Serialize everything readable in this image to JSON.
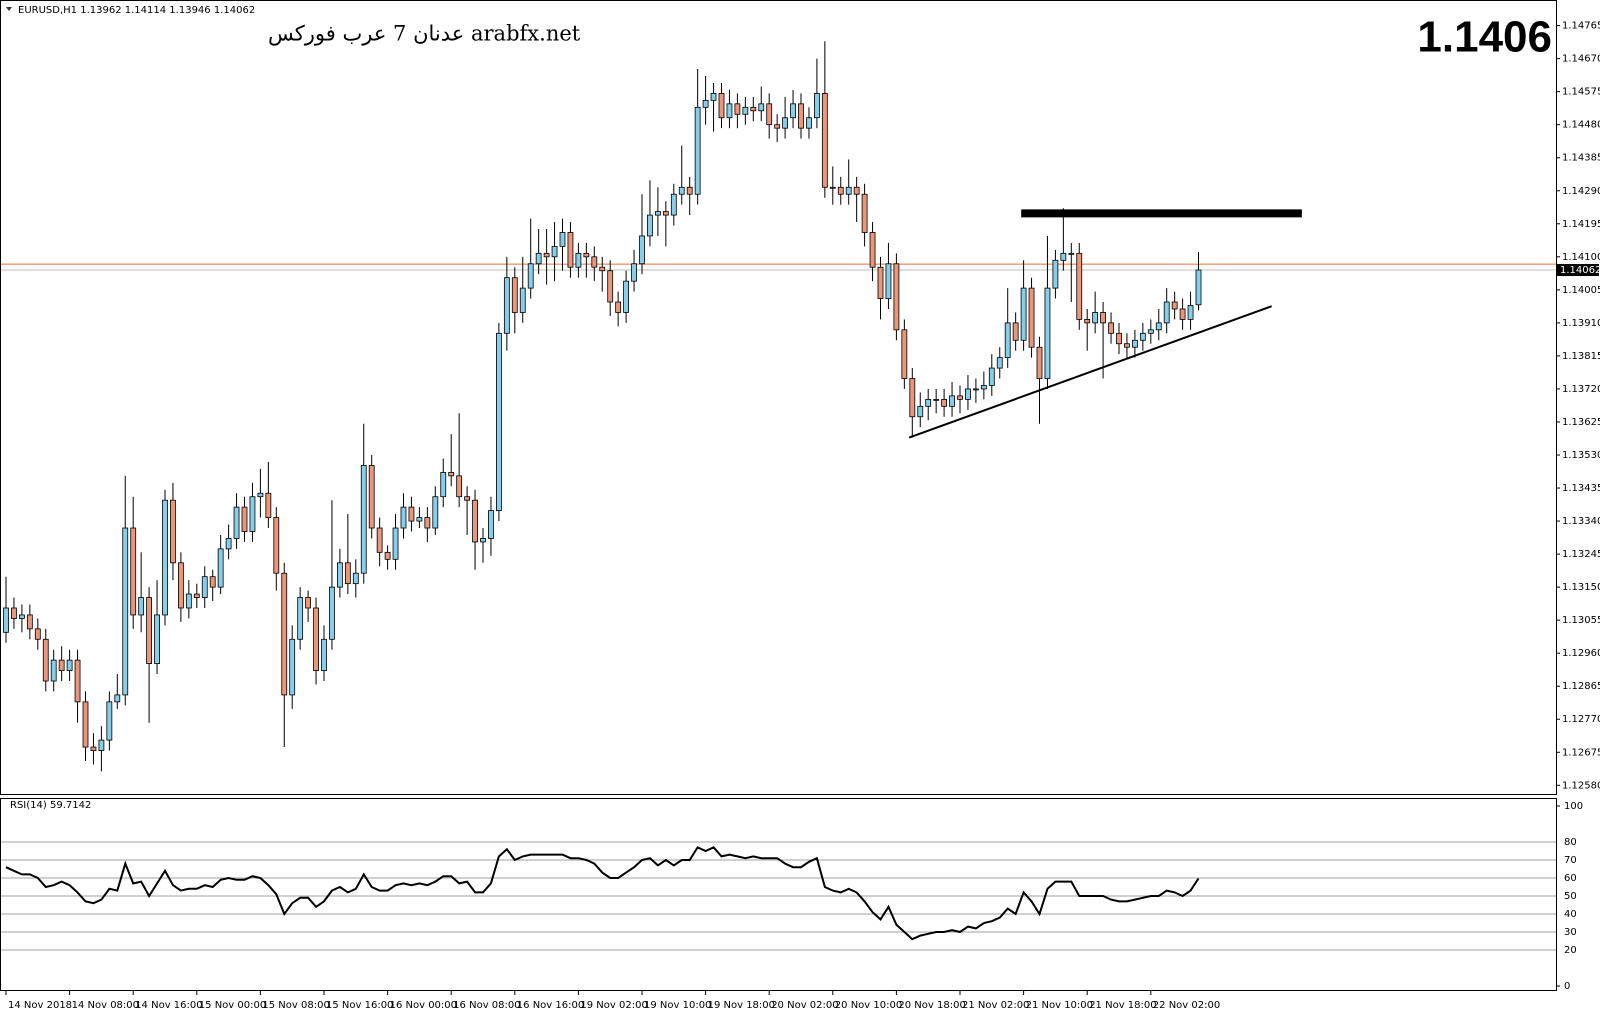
{
  "chart_data": [
    {
      "type": "candlestick",
      "symbol": "EURUSD,H1",
      "watermark": "عدنان 7 عرب فوركس arabfx.net",
      "price_display": 1.1406,
      "up_color": "#87ceeb",
      "down_color": "#e9967a",
      "ask_line": 1.14079,
      "ask_color": "#e8703a",
      "ylim": [
        1.12555,
        1.1483
      ],
      "yticks": [
        {
          "value": 1.1258,
          "label": "1.12580"
        },
        1.12675,
        {
          "value": 1.1277,
          "label": "1.12770"
        },
        1.12865,
        {
          "value": 1.1296,
          "label": "1.12960"
        },
        1.13055,
        {
          "value": 1.1315,
          "label": "1.13150"
        },
        1.13245,
        {
          "value": 1.1334,
          "label": "1.13340"
        },
        1.13435,
        {
          "value": 1.1353,
          "label": "1.13530"
        },
        1.13625,
        {
          "value": 1.1372,
          "label": "1.13720"
        },
        1.13815,
        {
          "value": 1.1391,
          "label": "1.13910"
        },
        1.14005,
        {
          "value": 1.141,
          "label": "1.14100"
        },
        1.14195,
        {
          "value": 1.1429,
          "label": "1.14290"
        },
        1.14385,
        {
          "value": 1.1448,
          "label": "1.14480"
        },
        1.14575,
        {
          "value": 1.1467,
          "label": "1.14670"
        },
        1.14765
      ],
      "x_labels": [
        {
          "value": 0,
          "label": "14 Nov 2018"
        },
        {
          "value": 8,
          "label": "14 Nov 08:00"
        },
        {
          "value": 16,
          "label": "14 Nov 16:00"
        },
        {
          "value": 24,
          "label": "15 Nov 00:00"
        },
        {
          "value": 32,
          "label": "15 Nov 08:00"
        },
        {
          "value": 40,
          "label": "15 Nov 16:00"
        },
        {
          "value": 48,
          "label": "16 Nov 00:00"
        },
        {
          "value": 56,
          "label": "16 Nov 08:00"
        },
        {
          "value": 64,
          "label": "16 Nov 16:00"
        },
        {
          "value": 72,
          "label": "19 Nov 02:00"
        },
        {
          "value": 80,
          "label": "19 Nov 10:00"
        },
        {
          "value": 88,
          "label": "19 Nov 18:00"
        },
        {
          "value": 96,
          "label": "20 Nov 02:00"
        },
        {
          "value": 104,
          "label": "20 Nov 10:00"
        },
        {
          "value": 112,
          "label": "20 Nov 18:00"
        },
        {
          "value": 120,
          "label": "21 Nov 02:00"
        },
        {
          "value": 128,
          "label": "21 Nov 10:00"
        },
        {
          "value": 136,
          "label": "21 Nov 18:00"
        },
        {
          "value": 144,
          "label": "22 Nov 02:00"
        }
      ],
      "resistance": {
        "price": 1.14225,
        "x": [
          127.7,
          163
        ]
      },
      "trendline": {
        "x": [
          113.6,
          159.2
        ],
        "price": [
          1.1358,
          1.13958
        ]
      },
      "ohlc": [
        [
          1.1302,
          1.1318,
          1.1299,
          1.1309
        ],
        [
          1.1309,
          1.1312,
          1.1303,
          1.1306
        ],
        [
          1.1306,
          1.131,
          1.1302,
          1.1307
        ],
        [
          1.1307,
          1.131,
          1.13,
          1.1303
        ],
        [
          1.1303,
          1.1306,
          1.1297,
          1.13
        ],
        [
          1.13,
          1.1303,
          1.1285,
          1.1288
        ],
        [
          1.1288,
          1.1297,
          1.1285,
          1.1294
        ],
        [
          1.1294,
          1.1298,
          1.1288,
          1.1291
        ],
        [
          1.1291,
          1.1297,
          1.1288,
          1.1294
        ],
        [
          1.1294,
          1.1297,
          1.1276,
          1.1282
        ],
        [
          1.1282,
          1.1285,
          1.1265,
          1.1269
        ],
        [
          1.1269,
          1.1273,
          1.1264,
          1.1268
        ],
        [
          1.1268,
          1.1275,
          1.1262,
          1.1271
        ],
        [
          1.1271,
          1.1285,
          1.1268,
          1.1282
        ],
        [
          1.1282,
          1.129,
          1.128,
          1.1284
        ],
        [
          1.1284,
          1.1347,
          1.1281,
          1.1332
        ],
        [
          1.1332,
          1.1341,
          1.1303,
          1.1307
        ],
        [
          1.1307,
          1.1325,
          1.1302,
          1.1312
        ],
        [
          1.1312,
          1.1315,
          1.1276,
          1.1293
        ],
        [
          1.1293,
          1.1317,
          1.129,
          1.1307
        ],
        [
          1.1307,
          1.1343,
          1.1304,
          1.134
        ],
        [
          1.134,
          1.1345,
          1.1317,
          1.1322
        ],
        [
          1.1322,
          1.1325,
          1.1305,
          1.1309
        ],
        [
          1.1309,
          1.1317,
          1.1306,
          1.1313
        ],
        [
          1.1313,
          1.1316,
          1.1309,
          1.1312
        ],
        [
          1.1312,
          1.1321,
          1.1309,
          1.1318
        ],
        [
          1.1318,
          1.132,
          1.1311,
          1.1315
        ],
        [
          1.1315,
          1.133,
          1.1313,
          1.1326
        ],
        [
          1.1326,
          1.1333,
          1.1323,
          1.1329
        ],
        [
          1.1329,
          1.1342,
          1.1326,
          1.1338
        ],
        [
          1.1338,
          1.1341,
          1.1328,
          1.1331
        ],
        [
          1.1331,
          1.1345,
          1.1328,
          1.1341
        ],
        [
          1.1341,
          1.1349,
          1.1335,
          1.1342
        ],
        [
          1.1342,
          1.1351,
          1.1332,
          1.1335
        ],
        [
          1.1335,
          1.1338,
          1.1314,
          1.1319
        ],
        [
          1.1319,
          1.1322,
          1.1269,
          1.1284
        ],
        [
          1.1284,
          1.1304,
          1.128,
          1.13
        ],
        [
          1.13,
          1.1315,
          1.1297,
          1.1312
        ],
        [
          1.1312,
          1.1314,
          1.1305,
          1.1309
        ],
        [
          1.1309,
          1.1312,
          1.1287,
          1.1291
        ],
        [
          1.1291,
          1.1304,
          1.1288,
          1.13
        ],
        [
          1.13,
          1.134,
          1.1297,
          1.1315
        ],
        [
          1.1315,
          1.1326,
          1.1312,
          1.1322
        ],
        [
          1.1322,
          1.1336,
          1.1313,
          1.1316
        ],
        [
          1.1316,
          1.1323,
          1.1312,
          1.1319
        ],
        [
          1.1319,
          1.1362,
          1.1316,
          1.135
        ],
        [
          1.135,
          1.1353,
          1.1329,
          1.1332
        ],
        [
          1.1332,
          1.1335,
          1.1321,
          1.1325
        ],
        [
          1.1325,
          1.1327,
          1.132,
          1.1323
        ],
        [
          1.1323,
          1.1336,
          1.132,
          1.1332
        ],
        [
          1.1332,
          1.1342,
          1.1329,
          1.1338
        ],
        [
          1.1338,
          1.1341,
          1.1331,
          1.1334
        ],
        [
          1.1334,
          1.1338,
          1.1332,
          1.1335
        ],
        [
          1.1335,
          1.1338,
          1.1328,
          1.1332
        ],
        [
          1.1332,
          1.1344,
          1.133,
          1.1341
        ],
        [
          1.1341,
          1.1352,
          1.1338,
          1.1348
        ],
        [
          1.1348,
          1.1359,
          1.1344,
          1.1347
        ],
        [
          1.1347,
          1.1365,
          1.1338,
          1.1341
        ],
        [
          1.1341,
          1.1344,
          1.133,
          1.134
        ],
        [
          1.134,
          1.1343,
          1.132,
          1.1328
        ],
        [
          1.1328,
          1.1332,
          1.1322,
          1.1329
        ],
        [
          1.1329,
          1.1341,
          1.1324,
          1.1337
        ],
        [
          1.1337,
          1.1391,
          1.1334,
          1.1388
        ],
        [
          1.1388,
          1.141,
          1.1383,
          1.1404
        ],
        [
          1.1404,
          1.1407,
          1.1388,
          1.1394
        ],
        [
          1.1394,
          1.141,
          1.1391,
          1.1401
        ],
        [
          1.1401,
          1.1421,
          1.1398,
          1.1408
        ],
        [
          1.1408,
          1.1418,
          1.1405,
          1.1411
        ],
        [
          1.1411,
          1.1418,
          1.1402,
          1.141
        ],
        [
          1.141,
          1.142,
          1.1403,
          1.1413
        ],
        [
          1.1413,
          1.1421,
          1.1406,
          1.1417
        ],
        [
          1.1417,
          1.142,
          1.1404,
          1.1407
        ],
        [
          1.1407,
          1.1414,
          1.1404,
          1.1411
        ],
        [
          1.1411,
          1.1414,
          1.1404,
          1.141
        ],
        [
          1.141,
          1.1413,
          1.1403,
          1.1407
        ],
        [
          1.1407,
          1.141,
          1.14,
          1.1406
        ],
        [
          1.1406,
          1.1409,
          1.1393,
          1.1397
        ],
        [
          1.1397,
          1.14,
          1.139,
          1.1394
        ],
        [
          1.1394,
          1.1406,
          1.1391,
          1.1403
        ],
        [
          1.1403,
          1.1412,
          1.14,
          1.1408
        ],
        [
          1.1408,
          1.1428,
          1.1405,
          1.1416
        ],
        [
          1.1416,
          1.1432,
          1.1413,
          1.1422
        ],
        [
          1.1422,
          1.143,
          1.1416,
          1.1423
        ],
        [
          1.1423,
          1.1426,
          1.1413,
          1.1422
        ],
        [
          1.1422,
          1.1431,
          1.1419,
          1.1428
        ],
        [
          1.1428,
          1.1442,
          1.1425,
          1.143
        ],
        [
          1.143,
          1.1433,
          1.1422,
          1.1428
        ],
        [
          1.1428,
          1.1464,
          1.1425,
          1.1453
        ],
        [
          1.1453,
          1.1462,
          1.1448,
          1.1455
        ],
        [
          1.1455,
          1.146,
          1.1446,
          1.1457
        ],
        [
          1.1457,
          1.146,
          1.1447,
          1.145
        ],
        [
          1.145,
          1.1458,
          1.1447,
          1.1454
        ],
        [
          1.1454,
          1.1457,
          1.1447,
          1.1451
        ],
        [
          1.1451,
          1.1456,
          1.1448,
          1.1453
        ],
        [
          1.1453,
          1.1456,
          1.1449,
          1.1452
        ],
        [
          1.1452,
          1.1459,
          1.1449,
          1.1454
        ],
        [
          1.1454,
          1.1457,
          1.1444,
          1.1448
        ],
        [
          1.1448,
          1.1451,
          1.1443,
          1.1447
        ],
        [
          1.1447,
          1.1456,
          1.1444,
          1.145
        ],
        [
          1.145,
          1.1458,
          1.1447,
          1.1454
        ],
        [
          1.1454,
          1.1457,
          1.1444,
          1.1447
        ],
        [
          1.1447,
          1.1453,
          1.1444,
          1.145
        ],
        [
          1.145,
          1.1467,
          1.1447,
          1.1457
        ],
        [
          1.1457,
          1.1472,
          1.1427,
          1.143
        ],
        [
          1.143,
          1.1436,
          1.1425,
          1.143
        ],
        [
          1.143,
          1.1433,
          1.1425,
          1.1428
        ],
        [
          1.1428,
          1.1438,
          1.1425,
          1.143
        ],
        [
          1.143,
          1.1433,
          1.142,
          1.1428
        ],
        [
          1.1428,
          1.1431,
          1.1413,
          1.1417
        ],
        [
          1.1417,
          1.142,
          1.1403,
          1.1407
        ],
        [
          1.1407,
          1.141,
          1.1392,
          1.1398
        ],
        [
          1.1398,
          1.1414,
          1.1395,
          1.1408
        ],
        [
          1.1408,
          1.1411,
          1.1386,
          1.1389
        ],
        [
          1.1389,
          1.1392,
          1.1372,
          1.1375
        ],
        [
          1.1375,
          1.1378,
          1.1358,
          1.1364
        ],
        [
          1.1364,
          1.1371,
          1.1361,
          1.1367
        ],
        [
          1.1367,
          1.1372,
          1.1363,
          1.1369
        ],
        [
          1.1369,
          1.1372,
          1.1365,
          1.1369
        ],
        [
          1.1369,
          1.1372,
          1.1364,
          1.1367
        ],
        [
          1.1367,
          1.1374,
          1.1364,
          1.137
        ],
        [
          1.137,
          1.1373,
          1.1365,
          1.1369
        ],
        [
          1.1369,
          1.1376,
          1.1366,
          1.1372
        ],
        [
          1.1372,
          1.1375,
          1.1368,
          1.1372
        ],
        [
          1.1372,
          1.1377,
          1.1369,
          1.1373
        ],
        [
          1.1373,
          1.1382,
          1.137,
          1.1378
        ],
        [
          1.1378,
          1.1384,
          1.1375,
          1.1381
        ],
        [
          1.1381,
          1.1401,
          1.1378,
          1.1391
        ],
        [
          1.1391,
          1.1394,
          1.1383,
          1.1386
        ],
        [
          1.1386,
          1.1409,
          1.1383,
          1.1401
        ],
        [
          1.1401,
          1.1404,
          1.1381,
          1.1384
        ],
        [
          1.1384,
          1.1387,
          1.1362,
          1.1375
        ],
        [
          1.1375,
          1.1416,
          1.1372,
          1.1401
        ],
        [
          1.1401,
          1.1412,
          1.1398,
          1.1409
        ],
        [
          1.1409,
          1.1424,
          1.1406,
          1.1411
        ],
        [
          1.1411,
          1.1414,
          1.1397,
          1.1411
        ],
        [
          1.1411,
          1.1414,
          1.1389,
          1.1392
        ],
        [
          1.1392,
          1.1395,
          1.1383,
          1.1391
        ],
        [
          1.1391,
          1.14,
          1.1388,
          1.1394
        ],
        [
          1.1394,
          1.1397,
          1.1375,
          1.1391
        ],
        [
          1.1391,
          1.1394,
          1.1385,
          1.1388
        ],
        [
          1.1388,
          1.1391,
          1.1382,
          1.1385
        ],
        [
          1.1385,
          1.1388,
          1.1381,
          1.1384
        ],
        [
          1.1384,
          1.1389,
          1.1381,
          1.1386
        ],
        [
          1.1386,
          1.1391,
          1.1383,
          1.1388
        ],
        [
          1.1388,
          1.1392,
          1.1385,
          1.1389
        ],
        [
          1.1389,
          1.1395,
          1.1386,
          1.1391
        ],
        [
          1.1391,
          1.1401,
          1.1388,
          1.1397
        ],
        [
          1.1397,
          1.14,
          1.1392,
          1.1395
        ],
        [
          1.1395,
          1.1398,
          1.1389,
          1.1392
        ],
        [
          1.1392,
          1.14,
          1.1389,
          1.1396
        ],
        [
          1.13962,
          1.14114,
          1.13946,
          1.14062
        ]
      ]
    },
    {
      "type": "line",
      "name": "RSI(14)",
      "color": "#000000",
      "ylim": [
        0,
        100
      ],
      "yticks": [
        0,
        20,
        30,
        40,
        50,
        60,
        70,
        80,
        100
      ],
      "values": [
        66,
        64,
        62,
        62,
        60,
        55,
        56,
        58,
        56,
        52,
        47,
        46,
        48,
        54,
        53,
        68,
        57,
        58,
        50,
        57,
        64,
        56,
        53,
        54,
        54,
        56,
        55,
        59,
        60,
        59,
        59,
        61,
        60,
        56,
        51,
        40,
        46,
        49,
        49,
        44,
        47,
        53,
        55,
        52,
        54,
        62,
        55,
        53,
        53,
        56,
        57,
        56,
        57,
        56,
        58,
        61,
        61,
        57,
        58,
        52,
        52,
        57,
        72,
        76,
        70,
        72,
        73,
        73,
        73,
        73,
        73,
        71,
        71,
        70,
        68,
        63,
        60,
        60,
        63,
        66,
        70,
        71,
        67,
        70,
        67,
        70,
        70,
        77,
        75,
        77,
        72,
        73,
        72,
        71,
        72,
        71,
        71,
        71,
        68,
        66,
        66,
        69,
        71,
        55,
        53,
        52,
        54,
        52,
        47,
        41,
        37,
        44,
        34,
        30,
        26,
        28,
        29,
        30,
        30,
        31,
        30,
        33,
        32,
        35,
        36,
        38,
        43,
        40,
        52,
        47,
        40,
        54,
        58,
        58,
        58,
        50,
        50,
        50,
        50,
        48,
        47,
        47,
        48,
        49,
        50,
        50,
        53,
        52,
        50,
        53,
        59.7142
      ]
    }
  ]
}
